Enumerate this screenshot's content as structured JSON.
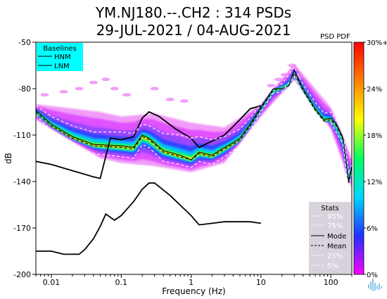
{
  "header": {
    "title_line1": "YM.NJ180.--.CH2 : 314 PSDs",
    "title_line2": "29-JUL-2021 / 04-AUG-2021",
    "pdf_label": "PSD PDF"
  },
  "baselines_legend": {
    "title": "Baselines",
    "entries": [
      "HNM",
      "LNM"
    ],
    "background": "#00ffff"
  },
  "stats_legend": {
    "title": "Stats",
    "entries": [
      "95%",
      "75%",
      "Mode",
      "Mean",
      "25%",
      "5%"
    ],
    "background": "#d8d2dc"
  },
  "colorbar": {
    "ticks": [
      "30%+",
      "24%",
      "18%",
      "12%",
      "6%",
      "0%"
    ],
    "stops": [
      "#ff00ff",
      "#2030ff",
      "#00d8ff",
      "#00ff60",
      "#ffff00",
      "#ff8000",
      "#ff0000"
    ]
  },
  "chart_data": {
    "type": "line",
    "xlabel": "Frequency (Hz)",
    "ylabel": "dB",
    "xscale": "log",
    "xlim": [
      0.006,
      200
    ],
    "ylim": [
      -200,
      -50
    ],
    "xticks": [
      0.01,
      0.1,
      1,
      10,
      100
    ],
    "xtick_labels": [
      "0.01",
      "0.1",
      "1",
      "10",
      "100"
    ],
    "yticks": [
      -50,
      -80,
      -110,
      -140,
      -170,
      -200
    ],
    "ytick_labels": [
      "-50",
      "-80",
      "-110",
      "-140",
      "-170",
      "-200"
    ],
    "grid": false,
    "series": [
      {
        "name": "HNM",
        "color": "#000000",
        "points": [
          [
            0.006,
            -127
          ],
          [
            0.01,
            -129
          ],
          [
            0.02,
            -133
          ],
          [
            0.04,
            -137
          ],
          [
            0.05,
            -138
          ],
          [
            0.07,
            -112
          ],
          [
            0.1,
            -113
          ],
          [
            0.15,
            -111
          ],
          [
            0.2,
            -99
          ],
          [
            0.25,
            -95
          ],
          [
            0.35,
            -98
          ],
          [
            0.6,
            -106
          ],
          [
            1,
            -112
          ],
          [
            1.3,
            -118
          ],
          [
            3,
            -110
          ],
          [
            5,
            -100
          ],
          [
            7,
            -93
          ],
          [
            10,
            -91
          ]
        ]
      },
      {
        "name": "LNM",
        "color": "#000000",
        "points": [
          [
            0.006,
            -185
          ],
          [
            0.01,
            -185
          ],
          [
            0.015,
            -187
          ],
          [
            0.025,
            -187
          ],
          [
            0.03,
            -184
          ],
          [
            0.04,
            -177
          ],
          [
            0.05,
            -169
          ],
          [
            0.06,
            -161
          ],
          [
            0.08,
            -165
          ],
          [
            0.1,
            -162
          ],
          [
            0.15,
            -153
          ],
          [
            0.2,
            -145
          ],
          [
            0.25,
            -141
          ],
          [
            0.3,
            -141
          ],
          [
            0.5,
            -149
          ],
          [
            1,
            -162
          ],
          [
            1.3,
            -168
          ],
          [
            2,
            -167
          ],
          [
            3,
            -166
          ],
          [
            5,
            -166
          ],
          [
            7,
            -166
          ],
          [
            10,
            -167
          ]
        ]
      },
      {
        "name": "Mode",
        "color": "#000000",
        "points": [
          [
            0.006,
            -94
          ],
          [
            0.01,
            -103
          ],
          [
            0.02,
            -111
          ],
          [
            0.04,
            -116
          ],
          [
            0.1,
            -117
          ],
          [
            0.15,
            -118
          ],
          [
            0.2,
            -110
          ],
          [
            0.25,
            -112
          ],
          [
            0.4,
            -120
          ],
          [
            0.7,
            -123
          ],
          [
            1,
            -126
          ],
          [
            1.3,
            -121
          ],
          [
            2,
            -123
          ],
          [
            3,
            -118
          ],
          [
            4,
            -115
          ],
          [
            5,
            -112
          ],
          [
            7,
            -103
          ],
          [
            10,
            -92
          ],
          [
            15,
            -80
          ],
          [
            20,
            -80
          ],
          [
            25,
            -78
          ],
          [
            30,
            -68
          ],
          [
            40,
            -80
          ],
          [
            60,
            -93
          ],
          [
            80,
            -100
          ],
          [
            100,
            -99
          ],
          [
            120,
            -103
          ],
          [
            150,
            -112
          ],
          [
            180,
            -140
          ],
          [
            200,
            -130
          ]
        ]
      },
      {
        "name": "Mean",
        "color": "#000000",
        "dashed": true,
        "points": [
          [
            0.006,
            -95
          ],
          [
            0.01,
            -104
          ],
          [
            0.02,
            -112
          ],
          [
            0.04,
            -117
          ],
          [
            0.1,
            -118
          ],
          [
            0.15,
            -119
          ],
          [
            0.2,
            -111
          ],
          [
            0.25,
            -113
          ],
          [
            0.4,
            -121
          ],
          [
            0.7,
            -124
          ],
          [
            1,
            -126
          ],
          [
            1.3,
            -122
          ],
          [
            2,
            -124
          ],
          [
            3,
            -119
          ],
          [
            4,
            -116
          ],
          [
            5,
            -113
          ],
          [
            7,
            -104
          ],
          [
            10,
            -93
          ],
          [
            15,
            -81
          ],
          [
            20,
            -80
          ],
          [
            25,
            -78
          ],
          [
            30,
            -70
          ],
          [
            40,
            -81
          ],
          [
            60,
            -94
          ],
          [
            80,
            -101
          ],
          [
            100,
            -100
          ],
          [
            120,
            -104
          ],
          [
            150,
            -113
          ],
          [
            180,
            -141
          ],
          [
            200,
            -131
          ]
        ]
      },
      {
        "name": "95%",
        "color": "#ffffff",
        "dashed": true,
        "points": [
          [
            0.006,
            -91
          ],
          [
            0.01,
            -98
          ],
          [
            0.02,
            -104
          ],
          [
            0.04,
            -108
          ],
          [
            0.1,
            -108
          ],
          [
            0.15,
            -109
          ],
          [
            0.2,
            -103
          ],
          [
            0.25,
            -104
          ],
          [
            0.4,
            -109
          ],
          [
            0.7,
            -110
          ],
          [
            1,
            -112
          ],
          [
            1.3,
            -111
          ],
          [
            2,
            -113
          ],
          [
            3,
            -111
          ],
          [
            5,
            -106
          ],
          [
            7,
            -99
          ],
          [
            10,
            -90
          ],
          [
            15,
            -79
          ],
          [
            20,
            -77
          ],
          [
            30,
            -66
          ],
          [
            40,
            -77
          ],
          [
            60,
            -89
          ],
          [
            80,
            -96
          ],
          [
            100,
            -95
          ],
          [
            150,
            -108
          ],
          [
            180,
            -135
          ],
          [
            200,
            -128
          ]
        ]
      },
      {
        "name": "5%",
        "color": "#ffffff",
        "dashed": true,
        "points": [
          [
            0.006,
            -97
          ],
          [
            0.01,
            -107
          ],
          [
            0.02,
            -116
          ],
          [
            0.04,
            -122
          ],
          [
            0.1,
            -124
          ],
          [
            0.15,
            -125
          ],
          [
            0.2,
            -116
          ],
          [
            0.25,
            -118
          ],
          [
            0.4,
            -127
          ],
          [
            0.7,
            -129
          ],
          [
            1,
            -131
          ],
          [
            1.3,
            -127
          ],
          [
            2,
            -129
          ],
          [
            3,
            -124
          ],
          [
            5,
            -117
          ],
          [
            7,
            -107
          ],
          [
            10,
            -95
          ],
          [
            15,
            -83
          ],
          [
            20,
            -82
          ],
          [
            30,
            -72
          ],
          [
            40,
            -83
          ],
          [
            60,
            -96
          ],
          [
            80,
            -103
          ],
          [
            100,
            -102
          ],
          [
            150,
            -116
          ],
          [
            180,
            -145
          ],
          [
            200,
            -134
          ]
        ]
      }
    ],
    "density_band": {
      "center": [
        [
          0.006,
          -95
        ],
        [
          0.01,
          -104
        ],
        [
          0.02,
          -112
        ],
        [
          0.04,
          -117
        ],
        [
          0.1,
          -118
        ],
        [
          0.15,
          -119
        ],
        [
          0.2,
          -111
        ],
        [
          0.25,
          -113
        ],
        [
          0.4,
          -121
        ],
        [
          0.7,
          -124
        ],
        [
          1,
          -126
        ],
        [
          1.3,
          -122
        ],
        [
          2,
          -124
        ],
        [
          3,
          -119
        ],
        [
          4,
          -116
        ],
        [
          5,
          -113
        ],
        [
          7,
          -104
        ],
        [
          10,
          -93
        ],
        [
          15,
          -81
        ],
        [
          20,
          -80
        ],
        [
          25,
          -78
        ],
        [
          30,
          -70
        ],
        [
          40,
          -81
        ],
        [
          60,
          -94
        ],
        [
          80,
          -101
        ],
        [
          100,
          -100
        ],
        [
          120,
          -104
        ],
        [
          150,
          -113
        ],
        [
          180,
          -141
        ],
        [
          200,
          -131
        ]
      ],
      "upper_spread": [
        [
          0.006,
          -90
        ],
        [
          0.05,
          -95
        ],
        [
          0.1,
          -98
        ],
        [
          0.3,
          -96
        ],
        [
          1,
          -102
        ],
        [
          3,
          -105
        ],
        [
          10,
          -90
        ],
        [
          30,
          -64
        ],
        [
          100,
          -92
        ],
        [
          200,
          -125
        ]
      ],
      "lower_spread": [
        [
          0.006,
          -100
        ],
        [
          0.05,
          -125
        ],
        [
          0.1,
          -128
        ],
        [
          0.3,
          -130
        ],
        [
          1,
          -134
        ],
        [
          3,
          -128
        ],
        [
          10,
          -98
        ],
        [
          30,
          -74
        ],
        [
          100,
          -106
        ],
        [
          200,
          -145
        ]
      ]
    },
    "outliers": [
      [
        0.008,
        -84
      ],
      [
        0.015,
        -82
      ],
      [
        0.025,
        -80
      ],
      [
        0.04,
        -76
      ],
      [
        0.06,
        -74
      ],
      [
        0.08,
        -80
      ],
      [
        0.12,
        -84
      ],
      [
        0.3,
        -80
      ],
      [
        0.5,
        -87
      ],
      [
        0.8,
        -88
      ],
      [
        14,
        -78
      ],
      [
        18,
        -74
      ],
      [
        22,
        -71
      ],
      [
        28,
        -65
      ],
      [
        35,
        -72
      ]
    ]
  }
}
